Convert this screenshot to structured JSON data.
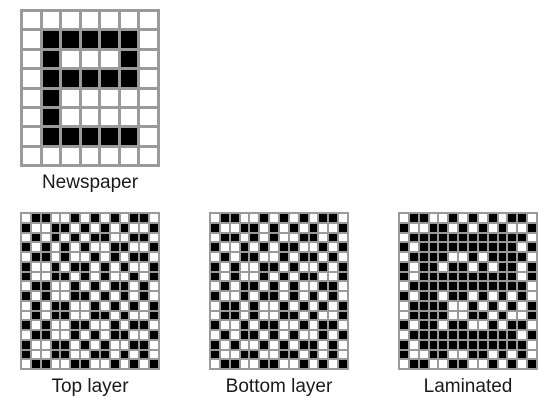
{
  "captions": {
    "newspaper": "Newspaper",
    "top_layer": "Top layer",
    "bottom_layer": "Bottom layer",
    "laminated": "Laminated"
  },
  "colors": {
    "ink": "#000000",
    "paper": "#ffffff",
    "grid": "#9a9a9a"
  },
  "newspaper_bitmap": [
    "0000000",
    "0111110",
    "0100010",
    "0111110",
    "0100000",
    "0100000",
    "0111110",
    "0000000"
  ]
}
